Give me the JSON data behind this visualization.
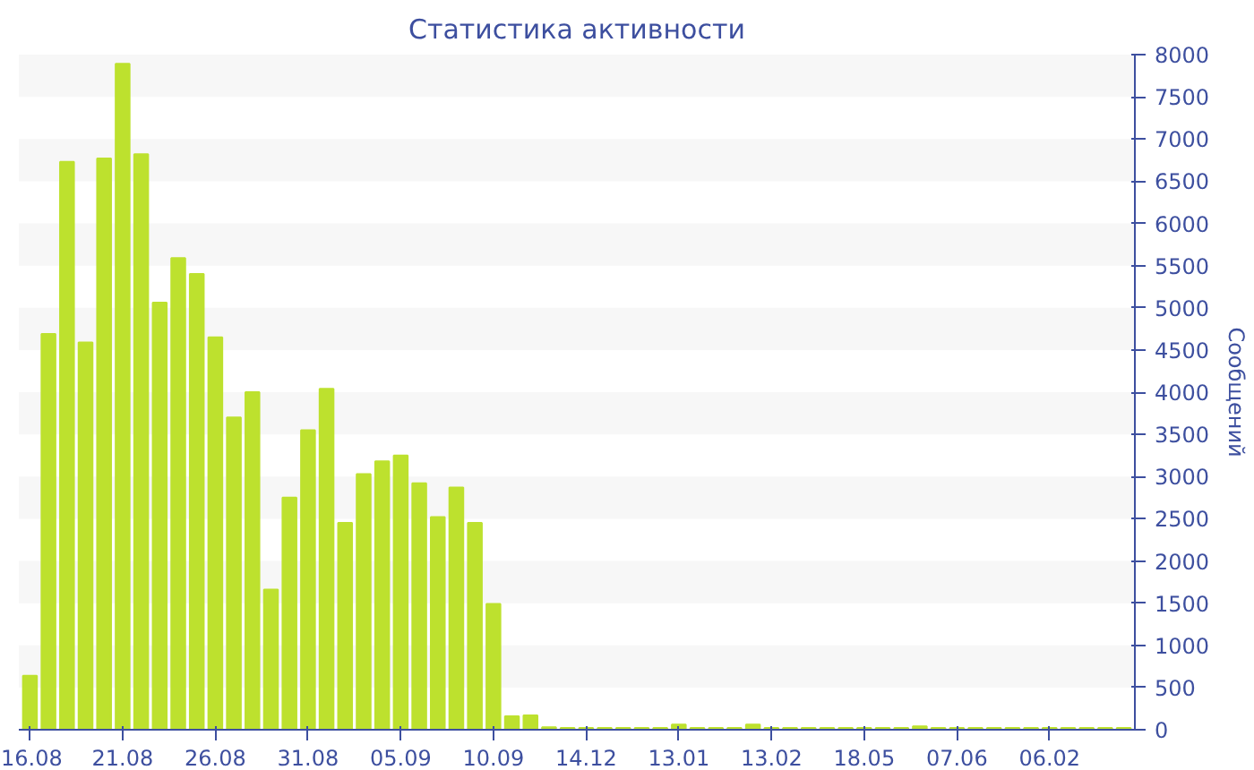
{
  "chart_data": {
    "type": "bar",
    "title": "Статистика активности",
    "ylabel": "Сообщений",
    "categories": [
      "16.08",
      null,
      null,
      null,
      null,
      "21.08",
      null,
      null,
      null,
      null,
      "26.08",
      null,
      null,
      null,
      null,
      "31.08",
      null,
      null,
      null,
      null,
      "05.09",
      null,
      null,
      null,
      null,
      "10.09",
      null,
      null,
      null,
      null,
      "14.12",
      null,
      null,
      null,
      null,
      "13.01",
      null,
      null,
      null,
      null,
      "13.02",
      null,
      null,
      null,
      null,
      "18.05",
      null,
      null,
      null,
      null,
      "07.06",
      null,
      null,
      null,
      null,
      "06.02",
      null,
      null,
      null,
      null
    ],
    "values": [
      640,
      4690,
      6730,
      4590,
      6770,
      7890,
      6820,
      5060,
      5590,
      5400,
      4650,
      3700,
      4000,
      1660,
      2750,
      3550,
      4040,
      2450,
      3030,
      3180,
      3250,
      2920,
      2520,
      2870,
      2450,
      1490,
      160,
      170,
      30,
      20,
      20,
      20,
      20,
      20,
      20,
      60,
      20,
      20,
      20,
      60,
      20,
      20,
      20,
      20,
      20,
      20,
      20,
      20,
      40,
      20,
      20,
      20,
      20,
      20,
      20,
      20,
      20,
      20,
      20,
      20
    ],
    "color": "#bde12e",
    "ylim": [
      0,
      8000
    ],
    "yticks": [
      0,
      500,
      1000,
      1500,
      2000,
      2500,
      3000,
      3500,
      4000,
      4500,
      5000,
      5500,
      6000,
      6500,
      7000,
      7500,
      8000
    ]
  }
}
